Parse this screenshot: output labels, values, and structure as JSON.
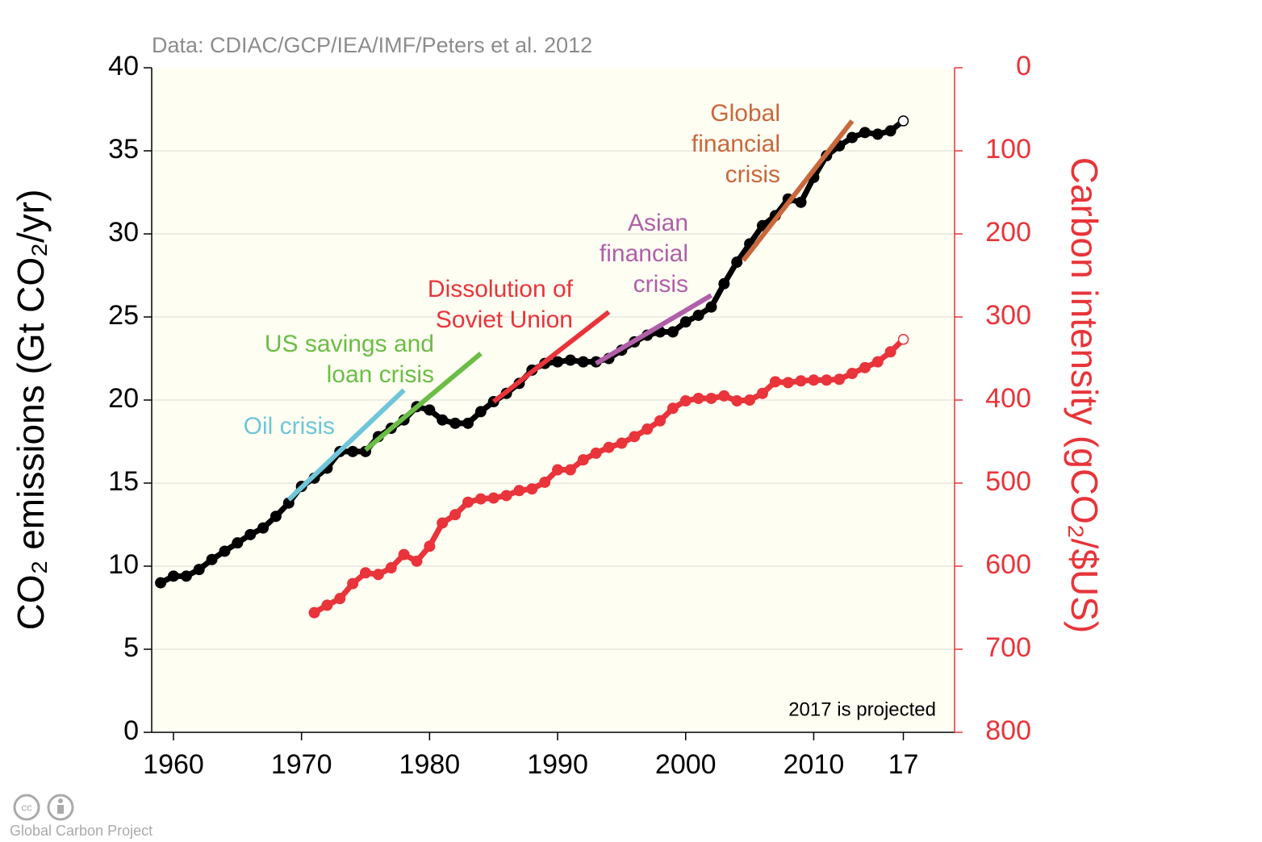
{
  "chart_data": {
    "type": "line",
    "source": "Data: CDIAC/GCP/IEA/IMF/Peters et al. 2012",
    "ylabel": "CO₂ emissions (Gt CO₂/yr)",
    "y2label": "Carbon intensity (gCO₂/$US)",
    "note": "2017 is projected",
    "credit": "Global Carbon Project",
    "xlim": [
      1958.3,
      2021
    ],
    "xticks": [
      1960,
      1970,
      1980,
      1990,
      2000,
      2010,
      {
        "value": 2017,
        "label": "17"
      }
    ],
    "ylim": [
      0,
      40
    ],
    "yticks": [
      0,
      5,
      10,
      15,
      20,
      25,
      30,
      35,
      40
    ],
    "y2lim": [
      800,
      0
    ],
    "y2ticks": [
      0,
      100,
      200,
      300,
      400,
      500,
      600,
      700,
      800
    ],
    "y2color": "#e8343a",
    "grid": true,
    "series": [
      {
        "color": "#000000",
        "x": [
          1959,
          1960,
          1961,
          1962,
          1963,
          1964,
          1965,
          1966,
          1967,
          1968,
          1969,
          1970,
          1971,
          1972,
          1973,
          1974,
          1975,
          1976,
          1977,
          1978,
          1979,
          1980,
          1981,
          1982,
          1983,
          1984,
          1985,
          1986,
          1987,
          1988,
          1989,
          1990,
          1991,
          1992,
          1993,
          1994,
          1995,
          1996,
          1997,
          1998,
          1999,
          2000,
          2001,
          2002,
          2003,
          2004,
          2005,
          2006,
          2007,
          2008,
          2009,
          2010,
          2011,
          2012,
          2013,
          2014,
          2015,
          2016,
          2017
        ],
        "values": [
          9.0,
          9.4,
          9.4,
          9.8,
          10.4,
          10.9,
          11.4,
          11.9,
          12.3,
          13.0,
          13.8,
          14.8,
          15.3,
          15.9,
          16.9,
          16.9,
          16.9,
          17.8,
          18.3,
          18.8,
          19.6,
          19.4,
          18.8,
          18.6,
          18.6,
          19.3,
          19.9,
          20.4,
          21.0,
          21.8,
          22.2,
          22.3,
          22.4,
          22.3,
          22.3,
          22.5,
          23.0,
          23.5,
          23.9,
          24.1,
          24.1,
          24.7,
          25.1,
          25.6,
          27.0,
          28.3,
          29.4,
          30.5,
          31.1,
          32.1,
          31.9,
          33.4,
          34.7,
          35.3,
          35.8,
          36.1,
          36.0,
          36.2,
          36.8
        ]
      },
      {
        "color": "#e8343a",
        "axis": "y2",
        "x": [
          1971,
          1972,
          1973,
          1974,
          1975,
          1976,
          1977,
          1978,
          1979,
          1980,
          1981,
          1982,
          1983,
          1984,
          1985,
          1986,
          1987,
          1988,
          1989,
          1990,
          1991,
          1992,
          1993,
          1994,
          1995,
          1996,
          1997,
          1998,
          1999,
          2000,
          2001,
          2002,
          2003,
          2004,
          2005,
          2006,
          2007,
          2008,
          2009,
          2010,
          2011,
          2012,
          2013,
          2014,
          2015,
          2016,
          2017
        ],
        "values": [
          656,
          647,
          639,
          621,
          608,
          610,
          602,
          586,
          594,
          576,
          548,
          538,
          523,
          519,
          518,
          515,
          509,
          507,
          499,
          484,
          484,
          472,
          464,
          457,
          452,
          444,
          435,
          425,
          410,
          401,
          398,
          398,
          395,
          401,
          400,
          392,
          378,
          379,
          377,
          376,
          376,
          375,
          368,
          361,
          354,
          342,
          327
        ]
      }
    ],
    "crisis_lines": [
      {
        "lines": [
          "Oil crisis"
        ],
        "color": "#6ec6d8",
        "x": [
          1969,
          1978
        ],
        "values": [
          14.0,
          20.6
        ]
      },
      {
        "lines": [
          "US savings and",
          "loan crisis"
        ],
        "color": "#6bbd45",
        "x": [
          1975,
          1984
        ],
        "values": [
          17.0,
          22.8
        ]
      },
      {
        "lines": [
          "Dissolution of",
          "Soviet Union"
        ],
        "color": "#e8343a",
        "x": [
          1985,
          1994
        ],
        "values": [
          19.9,
          25.3
        ]
      },
      {
        "lines": [
          "Asian",
          "financial",
          "crisis"
        ],
        "color": "#b05fa8",
        "x": [
          1993,
          2002
        ],
        "values": [
          22.2,
          26.3
        ]
      },
      {
        "lines": [
          "Global",
          "financial",
          "crisis"
        ],
        "color": "#c8683c",
        "x": [
          2004.5,
          2013
        ],
        "values": [
          28.4,
          36.8
        ]
      }
    ]
  }
}
